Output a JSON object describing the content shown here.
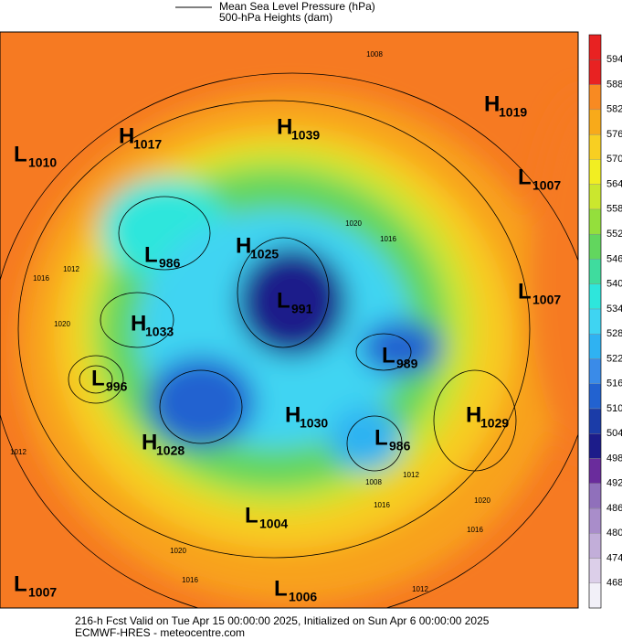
{
  "legend": [
    "Mean Sea Level Pressure (hPa)",
    "500-hPa Heights (dam)"
  ],
  "centers": [
    {
      "letter": "L",
      "value": 1010
    },
    {
      "letter": "H",
      "value": 1017
    },
    {
      "letter": "H",
      "value": 1039
    },
    {
      "letter": "H",
      "value": 1019
    },
    {
      "letter": "L",
      "value": 1007
    },
    {
      "letter": "L",
      "value": 986
    },
    {
      "letter": "H",
      "value": 1025
    },
    {
      "letter": "L",
      "value": 991
    },
    {
      "letter": "L",
      "value": 1007
    },
    {
      "letter": "H",
      "value": 1033
    },
    {
      "letter": "L",
      "value": 989
    },
    {
      "letter": "L",
      "value": 996
    },
    {
      "letter": "H",
      "value": 1030
    },
    {
      "letter": "H",
      "value": 1029
    },
    {
      "letter": "L",
      "value": 986
    },
    {
      "letter": "H",
      "value": 1028
    },
    {
      "letter": "L",
      "value": 1004
    },
    {
      "letter": "L",
      "value": 1007
    },
    {
      "letter": "L",
      "value": 1006
    }
  ],
  "contour_labels": [
    1008,
    1020,
    1016,
    1012,
    1016,
    1020,
    1012,
    1020,
    1016,
    1012,
    1016,
    1020,
    1008,
    1012,
    1016
  ],
  "colorbar": {
    "ticks": [
      468,
      474,
      480,
      486,
      492,
      498,
      504,
      510,
      516,
      522,
      528,
      534,
      540,
      546,
      552,
      558,
      564,
      570,
      576,
      582,
      588,
      594
    ],
    "colors": [
      "#f2f0f8",
      "#dccfe9",
      "#c2aed9",
      "#a98dca",
      "#9070bb",
      "#6a2c9c",
      "#1c1c8a",
      "#1b3ca8",
      "#2262d0",
      "#3a8be8",
      "#2fb2f2",
      "#3fd4f2",
      "#2ee6dc",
      "#3fdc9e",
      "#62d65e",
      "#94df3c",
      "#cbe72e",
      "#f2ee22",
      "#f8cf22",
      "#f8aa1a",
      "#f88a22",
      "#e82222"
    ]
  },
  "footer": [
    "216-h Fcst Valid on Tue Apr 15 00:00:00 2025, Initialized on Sun Apr  6 00:00:00 2025",
    "ECMWF-HRES  - meteocentre.com"
  ]
}
